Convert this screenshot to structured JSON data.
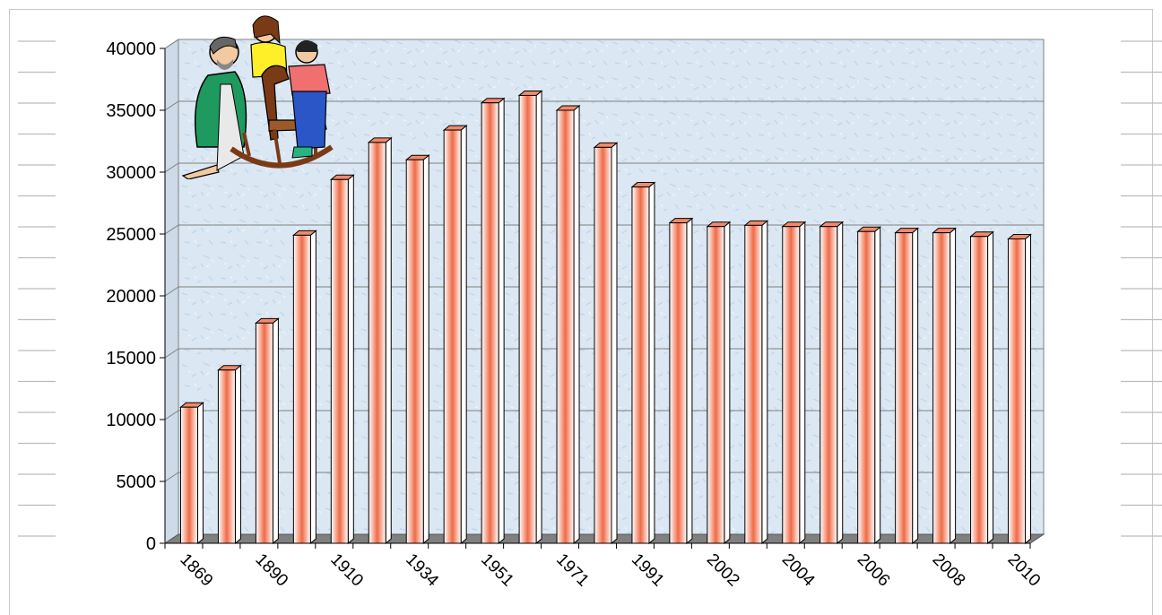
{
  "chart_data": {
    "type": "bar",
    "title": "",
    "xlabel": "",
    "ylabel": "",
    "ylim": [
      0,
      40000
    ],
    "yticks": [
      0,
      5000,
      10000,
      15000,
      20000,
      25000,
      30000,
      35000,
      40000
    ],
    "grid": true,
    "categories": [
      "1869",
      "",
      "1890",
      "",
      "1910",
      "",
      "1934",
      "",
      "1951",
      "",
      "1971",
      "",
      "1991",
      "",
      "2002",
      "",
      "2004",
      "",
      "2006",
      "",
      "2008",
      "",
      "2010"
    ],
    "tick_labels": [
      "1869",
      "1890",
      "1910",
      "1934",
      "1951",
      "1971",
      "1991",
      "2002",
      "2004",
      "2006",
      "2008",
      "2010"
    ],
    "values": [
      11000,
      14000,
      17800,
      24900,
      29400,
      32400,
      31000,
      33400,
      35600,
      36200,
      35000,
      32000,
      28800,
      25900,
      25600,
      25700,
      25600,
      25600,
      25200,
      25100,
      25100,
      24800,
      24600
    ]
  },
  "colors": {
    "plot_background": "#dbe8f3",
    "bar_core": "#f06a45",
    "bar_light": "#ffffff",
    "grid": "#7f7f7f",
    "floor": "#808080"
  },
  "clipart_name": "family-with-rocking-horse"
}
